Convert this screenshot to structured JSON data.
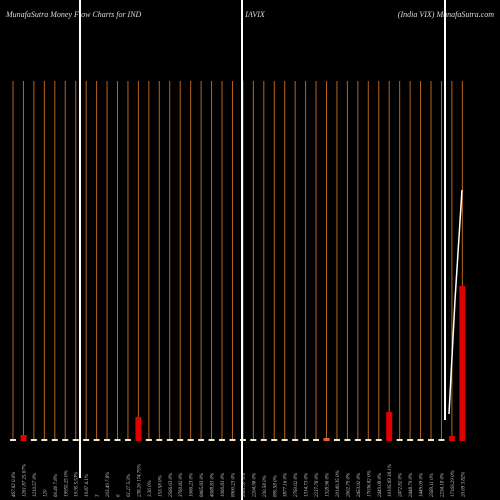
{
  "chart_data": {
    "type": "bar",
    "title_left": "MunafaSutra  Money Flow  Charts for IND",
    "title_center": "IAVIX",
    "title_right": "(India  VIX) MunafaSutra.com",
    "categories": [
      "467.62 0.0%",
      "1261.87 25.67%",
      "1210.57 0%",
      "120",
      "60.40 7.8%",
      "19955.25 0%",
      "19.95 5.53%",
      "19.87 4.1%",
      "3",
      "203.49 7.8%",
      "6",
      "61.27 5.3%",
      "238.26 174.75%",
      "3.36 0%",
      "153.58 0%",
      "2566.63 0%",
      "3760.82 0%",
      "1066.23 0%",
      "8465.83 0%",
      "4088.83 0%",
      "1066.83 0%",
      "8900.23 0%",
      "2861.97 0%",
      "2204.98 0%",
      "230.58 0%",
      "895.58 0%",
      "3877.16 0%",
      "2760.62 0%",
      "1314.73 0%",
      "2237.78 0%",
      "1328.96 0%",
      "20149.35 0%",
      "2602.79 0%",
      "2453.92 0%",
      "17036.82 0%",
      "2449.08 0%",
      "10105.69 38.1%",
      "2472.82 0%",
      "2448.79 0%",
      "1449.09 0%",
      "2589.11 0%",
      "2234.18 0%",
      "17169.29 0%",
      "20.69 3.82%"
    ],
    "values": [
      2,
      6,
      2,
      2,
      2,
      2,
      2,
      2,
      2,
      2,
      2,
      2,
      24,
      2,
      2,
      2,
      2,
      2,
      2,
      2,
      2,
      2,
      2,
      2,
      2,
      2,
      2,
      2,
      2,
      2,
      3,
      2,
      2,
      2,
      2,
      2,
      29,
      2,
      2,
      2,
      2,
      2,
      5,
      155
    ],
    "colors": [
      "#f0ead0",
      "#e00000",
      "#f0ead0",
      "#f0ead0",
      "#f0ead0",
      "#f0ead0",
      "#f0ead0",
      "#f0ead0",
      "#f0ead0",
      "#f0ead0",
      "#f0ead0",
      "#f0ead0",
      "#e00000",
      "#f0ead0",
      "#f0ead0",
      "#f0ead0",
      "#f0ead0",
      "#f0ead0",
      "#f0ead0",
      "#f0ead0",
      "#f0ead0",
      "#f0ead0",
      "#f0ead0",
      "#f0ead0",
      "#f0ead0",
      "#f0ead0",
      "#f0ead0",
      "#f0ead0",
      "#f0ead0",
      "#f0ead0",
      "#e06040",
      "#f0ead0",
      "#f0ead0",
      "#f0ead0",
      "#f0ead0",
      "#f0ead0",
      "#e00000",
      "#f0ead0",
      "#f0ead0",
      "#f0ead0",
      "#f0ead0",
      "#f0ead0",
      "#e00000",
      "#e00000"
    ],
    "ylim": [
      0,
      360
    ],
    "grid_color": "#b8651b"
  }
}
